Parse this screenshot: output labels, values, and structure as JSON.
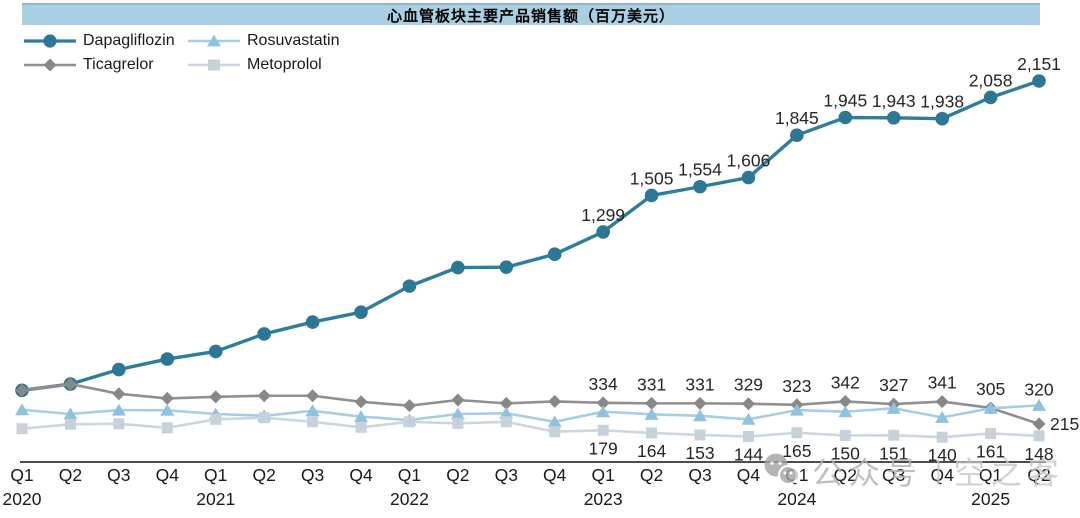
{
  "title_bar": {
    "text": "心血管板块主要产品销售额（百万美元）",
    "bg_color": "#a9cfe2"
  },
  "legend": [
    {
      "label": "Dapagliflozin",
      "marker": "circle",
      "color": "#2e7d9c"
    },
    {
      "label": "Rosuvastatin",
      "marker": "triangle",
      "color": "#8fc3dd"
    },
    {
      "label": "Ticagrelor",
      "marker": "diamond",
      "color": "#8f8f8f"
    },
    {
      "label": "Metoprolol",
      "marker": "square",
      "color": "#c6d1db"
    }
  ],
  "watermark": {
    "icon": "wechat-icon",
    "text1": "公众号",
    "separator": "|",
    "text2": "空之客"
  },
  "chart_data": {
    "type": "line",
    "title": "心血管板块主要产品销售额（百万美元）",
    "unit": "百万美元",
    "ylim": [
      0,
      2160
    ],
    "grid": false,
    "legend_position": "top-left",
    "x_quarter_labels": [
      "Q1",
      "Q2",
      "Q3",
      "Q4",
      "Q1",
      "Q2",
      "Q3",
      "Q4",
      "Q1",
      "Q2",
      "Q3",
      "Q4",
      "Q1",
      "Q2",
      "Q3",
      "Q4",
      "Q1",
      "Q2",
      "Q3",
      "Q4",
      "Q1",
      "Q2"
    ],
    "year_labels": [
      {
        "label": "2020",
        "index": 0
      },
      {
        "label": "2021",
        "index": 4
      },
      {
        "label": "2022",
        "index": 8
      },
      {
        "label": "2023",
        "index": 12
      },
      {
        "label": "2024",
        "index": 16
      },
      {
        "label": "2025",
        "index": 20
      }
    ],
    "series": [
      {
        "name": "Dapagliflozin",
        "marker": "circle",
        "line_color": "#2e7d9c",
        "marker_color": "#2b7795",
        "line_width": 3.4,
        "label_pos": "above",
        "label_dy": -11,
        "values": [
          405,
          440,
          522,
          581,
          624,
          723,
          790,
          846,
          993,
          1098,
          1100,
          1173,
          1299,
          1505,
          1554,
          1606,
          1845,
          1945,
          1943,
          1938,
          2058,
          2151
        ],
        "labels": {
          "12": "1,299",
          "13": "1,505",
          "14": "1,554",
          "15": "1,606",
          "16": "1,845",
          "17": "1,945",
          "18": "1,943",
          "19": "1,938",
          "20": "2,058",
          "21": "2,151"
        }
      },
      {
        "name": "Ticagrelor",
        "marker": "diamond",
        "line_color": "#8f8f8f",
        "marker_color": "#888888",
        "line_width": 2.6,
        "label_pos": "above",
        "label_dy": -13,
        "values": [
          405,
          440,
          385,
          359,
          368,
          374,
          374,
          340,
          318,
          350,
          331,
          342,
          334,
          331,
          331,
          329,
          323,
          342,
          327,
          341,
          305,
          215
        ],
        "labels": {
          "12": "334",
          "13": "331",
          "14": "331",
          "15": "329",
          "16": "323",
          "17": "342",
          "18": "327",
          "19": "341",
          "20": "305",
          "21": "215"
        },
        "label_overrides": {
          "21": "right"
        }
      },
      {
        "name": "Rosuvastatin",
        "marker": "triangle",
        "line_color": "#a5cde3",
        "marker_color": "#8fc3dd",
        "line_width": 2.6,
        "label_pos": "above",
        "label_dy": -10,
        "values": [
          295,
          271,
          293,
          292,
          271,
          261,
          289,
          256,
          237,
          271,
          275,
          227,
          284,
          269,
          261,
          241,
          293,
          284,
          303,
          252,
          303,
          320
        ],
        "labels": {
          "21": "320"
        }
      },
      {
        "name": "Metoprolol",
        "marker": "square",
        "line_color": "#ccd6de",
        "marker_color": "#c6d1db",
        "line_width": 2.6,
        "label_pos": "below",
        "label_dy": 24,
        "values": [
          188,
          213,
          216,
          193,
          241,
          250,
          227,
          196,
          227,
          218,
          227,
          171,
          179,
          164,
          153,
          144,
          165,
          150,
          151,
          140,
          161,
          148
        ],
        "labels": {
          "12": "179",
          "13": "164",
          "14": "153",
          "15": "144",
          "16": "165",
          "17": "150",
          "18": "151",
          "19": "140",
          "20": "161",
          "21": "148"
        }
      }
    ]
  }
}
